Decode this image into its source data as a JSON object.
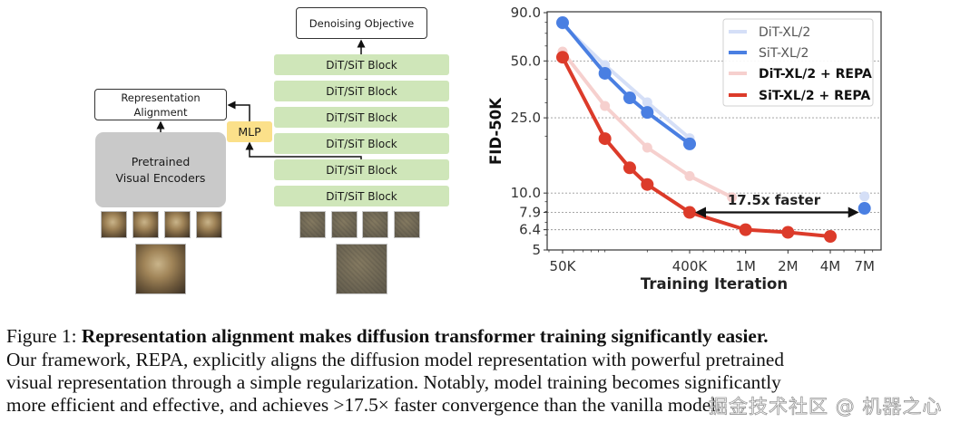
{
  "diagram": {
    "denoising_objective": "Denoising Objective",
    "blocks": [
      "DiT/SiT Block",
      "DiT/SiT Block",
      "DiT/SiT Block",
      "DiT/SiT Block",
      "DiT/SiT Block",
      "DiT/SiT Block"
    ],
    "representation_alignment_line1": "Representation",
    "representation_alignment_line2": "Alignment",
    "mlp": "MLP",
    "encoder_line1": "Pretrained",
    "encoder_line2": "Visual Encoders",
    "colors": {
      "block_fill": "#cfe6b9",
      "mlp_fill": "#fbe08a",
      "encoder_fill": "#c9c9c9"
    }
  },
  "chart_data": {
    "type": "line",
    "title": "",
    "xlabel": "Training Iteration",
    "ylabel": "FID-50K",
    "xscale": "log",
    "yscale": "log",
    "xlim": [
      39000,
      8500000
    ],
    "ylim": [
      5,
      90
    ],
    "x_ticks": [
      {
        "value": 50000,
        "label": "50K"
      },
      {
        "value": 400000,
        "label": "400K"
      },
      {
        "value": 1000000,
        "label": "1M"
      },
      {
        "value": 2000000,
        "label": "2M"
      },
      {
        "value": 4000000,
        "label": "4M"
      },
      {
        "value": 7000000,
        "label": "7M"
      }
    ],
    "y_ticks": [
      {
        "value": 90,
        "label": "90.0"
      },
      {
        "value": 50,
        "label": "50.0"
      },
      {
        "value": 25,
        "label": "25.0"
      },
      {
        "value": 10,
        "label": "10.0"
      },
      {
        "value": 7.9,
        "label": "7.9"
      },
      {
        "value": 6.4,
        "label": "6.4"
      },
      {
        "value": 5,
        "label": "5"
      }
    ],
    "y_gridlines": [
      50,
      25,
      10,
      7.9,
      6.4
    ],
    "grid": true,
    "legend_position": "top-right",
    "series": [
      {
        "name": "DiT-XL/2",
        "color": "#d5dff7",
        "bold": false,
        "points": [
          [
            50000,
            78
          ],
          [
            100000,
            47.5
          ],
          [
            200000,
            30.2
          ],
          [
            400000,
            19.5
          ],
          [
            7000000,
            9.6
          ]
        ],
        "segments": [
          [
            0,
            3
          ]
        ]
      },
      {
        "name": "SiT-XL/2",
        "color": "#4a7fe2",
        "bold": false,
        "points": [
          [
            50000,
            79.7
          ],
          [
            100000,
            43.0
          ],
          [
            150000,
            31.9
          ],
          [
            200000,
            26.7
          ],
          [
            400000,
            18.2
          ],
          [
            7000000,
            8.3
          ]
        ],
        "segments": [
          [
            0,
            4
          ]
        ]
      },
      {
        "name": "DiT-XL/2 + REPA",
        "color": "#f6d0ce",
        "bold": true,
        "points": [
          [
            50000,
            56
          ],
          [
            100000,
            28.9
          ],
          [
            200000,
            17.4
          ],
          [
            400000,
            12.3
          ],
          [
            800000,
            9.5
          ]
        ],
        "segments": [
          [
            0,
            4
          ]
        ]
      },
      {
        "name": "SiT-XL/2 + REPA",
        "color": "#dc3b2a",
        "bold": true,
        "points": [
          [
            50000,
            52.3
          ],
          [
            100000,
            19.4
          ],
          [
            150000,
            13.6
          ],
          [
            200000,
            11.1
          ],
          [
            400000,
            7.9
          ],
          [
            1000000,
            6.4
          ],
          [
            2000000,
            6.2
          ],
          [
            4000000,
            5.9
          ]
        ],
        "segments": [
          [
            0,
            7
          ]
        ]
      }
    ],
    "annotation": {
      "text": "17.5x faster",
      "arrow_from": [
        400000,
        7.9
      ],
      "arrow_to": [
        7000000,
        7.9
      ]
    }
  },
  "caption": {
    "label": "Figure 1:",
    "bold": "Representation alignment makes diffusion transformer training significantly easier.",
    "line2": "Our framework, REPA, explicitly aligns the diffusion model representation with powerful pretrained",
    "line3": "visual representation through a simple regularization. Notably, model training becomes significantly",
    "line4": "more efficient and effective, and achieves >17.5× faster convergence than the vanilla model."
  },
  "watermark": "掘金技术社区 @ 机器之心"
}
